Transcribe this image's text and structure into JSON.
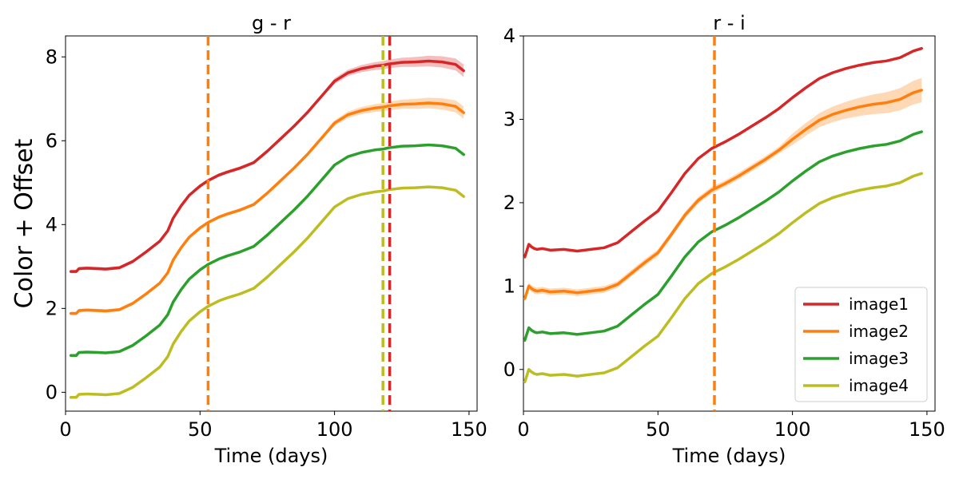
{
  "chart_data": [
    {
      "type": "line",
      "title": "g - r",
      "xlabel": "Time (days)",
      "ylabel": "Color + Offset",
      "xlim": [
        0,
        153
      ],
      "ylim": [
        -0.45,
        8.5
      ],
      "xticks": [
        0,
        50,
        100,
        150
      ],
      "yticks": [
        0,
        2,
        4,
        6,
        8
      ],
      "vlines": [
        {
          "x": 53,
          "color": "#ff7f0e"
        },
        {
          "x": 118,
          "color": "#bcbd22"
        },
        {
          "x": 120.5,
          "color": "#d62728"
        }
      ],
      "band_series": [
        0,
        1
      ],
      "series": [
        {
          "name": "image1",
          "color": "#d62728",
          "offset": 3,
          "x": [
            2,
            4,
            5,
            8,
            12,
            15,
            20,
            25,
            30,
            35,
            38,
            40,
            43,
            46,
            50,
            53,
            57,
            60,
            65,
            70,
            75,
            80,
            85,
            90,
            95,
            100,
            105,
            110,
            115,
            118,
            120,
            125,
            130,
            135,
            140,
            145,
            148
          ],
          "y": [
            -0.12,
            -0.12,
            -0.05,
            -0.04,
            -0.05,
            -0.06,
            -0.03,
            0.12,
            0.35,
            0.6,
            0.85,
            1.15,
            1.45,
            1.7,
            1.92,
            2.05,
            2.18,
            2.25,
            2.35,
            2.48,
            2.75,
            3.05,
            3.35,
            3.68,
            4.05,
            4.42,
            4.62,
            4.72,
            4.78,
            4.8,
            4.83,
            4.87,
            4.88,
            4.9,
            4.88,
            4.82,
            4.67
          ]
        },
        {
          "name": "image2",
          "color": "#ff7f0e",
          "offset": 2,
          "x": [
            2,
            4,
            5,
            8,
            12,
            15,
            20,
            25,
            30,
            35,
            38,
            40,
            43,
            46,
            50,
            53,
            57,
            60,
            65,
            70,
            75,
            80,
            85,
            90,
            95,
            100,
            105,
            110,
            115,
            118,
            120,
            125,
            130,
            135,
            140,
            145,
            148
          ],
          "y": [
            -0.12,
            -0.12,
            -0.05,
            -0.04,
            -0.05,
            -0.06,
            -0.03,
            0.12,
            0.35,
            0.6,
            0.85,
            1.15,
            1.45,
            1.7,
            1.92,
            2.05,
            2.18,
            2.25,
            2.35,
            2.48,
            2.75,
            3.05,
            3.35,
            3.68,
            4.05,
            4.42,
            4.62,
            4.72,
            4.78,
            4.8,
            4.83,
            4.87,
            4.88,
            4.9,
            4.88,
            4.82,
            4.67
          ]
        },
        {
          "name": "image3",
          "color": "#2ca02c",
          "offset": 1,
          "x": [
            2,
            4,
            5,
            8,
            12,
            15,
            20,
            25,
            30,
            35,
            38,
            40,
            43,
            46,
            50,
            53,
            57,
            60,
            65,
            70,
            75,
            80,
            85,
            90,
            95,
            100,
            105,
            110,
            115,
            118,
            120,
            125,
            130,
            135,
            140,
            145,
            148
          ],
          "y": [
            -0.12,
            -0.12,
            -0.05,
            -0.04,
            -0.05,
            -0.06,
            -0.03,
            0.12,
            0.35,
            0.6,
            0.85,
            1.15,
            1.45,
            1.7,
            1.92,
            2.05,
            2.18,
            2.25,
            2.35,
            2.48,
            2.75,
            3.05,
            3.35,
            3.68,
            4.05,
            4.42,
            4.62,
            4.72,
            4.78,
            4.8,
            4.83,
            4.87,
            4.88,
            4.9,
            4.88,
            4.82,
            4.67
          ]
        },
        {
          "name": "image4",
          "color": "#bcbd22",
          "offset": 0,
          "x": [
            2,
            4,
            5,
            8,
            12,
            15,
            20,
            25,
            30,
            35,
            38,
            40,
            43,
            46,
            50,
            53,
            57,
            60,
            65,
            70,
            75,
            80,
            85,
            90,
            95,
            100,
            105,
            110,
            115,
            118,
            120,
            125,
            130,
            135,
            140,
            145,
            148
          ],
          "y": [
            -0.12,
            -0.12,
            -0.05,
            -0.04,
            -0.05,
            -0.06,
            -0.03,
            0.12,
            0.35,
            0.6,
            0.85,
            1.15,
            1.45,
            1.7,
            1.92,
            2.05,
            2.18,
            2.25,
            2.35,
            2.48,
            2.75,
            3.05,
            3.35,
            3.68,
            4.05,
            4.42,
            4.62,
            4.72,
            4.78,
            4.8,
            4.83,
            4.87,
            4.88,
            4.9,
            4.88,
            4.82,
            4.67
          ]
        }
      ]
    },
    {
      "type": "line",
      "title": "r - i",
      "xlabel": "Time (days)",
      "ylabel": "",
      "xlim": [
        0,
        153
      ],
      "ylim": [
        -0.5,
        4.0
      ],
      "xticks": [
        0,
        50,
        100,
        150
      ],
      "yticks": [
        0,
        1,
        2,
        3,
        4
      ],
      "vlines": [
        {
          "x": 71,
          "color": "#ff7f0e"
        }
      ],
      "band_series": [
        1
      ],
      "legend": {
        "position": "lower-right"
      },
      "series": [
        {
          "name": "image1",
          "color": "#d62728",
          "offset": 1.5,
          "x": [
            0.5,
            2,
            3,
            4,
            5,
            7,
            10,
            15,
            20,
            25,
            30,
            35,
            40,
            45,
            50,
            55,
            60,
            65,
            70,
            75,
            80,
            85,
            90,
            95,
            100,
            105,
            110,
            115,
            120,
            125,
            130,
            135,
            140,
            145,
            148
          ],
          "y": [
            -0.15,
            0.0,
            -0.03,
            -0.05,
            -0.06,
            -0.05,
            -0.07,
            -0.06,
            -0.08,
            -0.06,
            -0.04,
            0.02,
            0.15,
            0.28,
            0.4,
            0.62,
            0.85,
            1.03,
            1.15,
            1.23,
            1.32,
            1.42,
            1.52,
            1.63,
            1.76,
            1.88,
            1.99,
            2.06,
            2.11,
            2.15,
            2.18,
            2.2,
            2.24,
            2.32,
            2.35
          ]
        },
        {
          "name": "image2",
          "color": "#ff7f0e",
          "offset": 1,
          "x": [
            0.5,
            2,
            3,
            4,
            5,
            7,
            10,
            15,
            20,
            25,
            30,
            35,
            40,
            45,
            50,
            55,
            60,
            65,
            70,
            75,
            80,
            85,
            90,
            95,
            100,
            105,
            110,
            115,
            120,
            125,
            130,
            135,
            140,
            145,
            148
          ],
          "y": [
            -0.15,
            0.0,
            -0.03,
            -0.05,
            -0.06,
            -0.05,
            -0.07,
            -0.06,
            -0.08,
            -0.06,
            -0.04,
            0.02,
            0.15,
            0.28,
            0.4,
            0.62,
            0.85,
            1.03,
            1.15,
            1.23,
            1.32,
            1.42,
            1.52,
            1.63,
            1.76,
            1.88,
            1.99,
            2.06,
            2.11,
            2.15,
            2.18,
            2.2,
            2.24,
            2.32,
            2.35
          ]
        },
        {
          "name": "image3",
          "color": "#2ca02c",
          "offset": 0.5,
          "x": [
            0.5,
            2,
            3,
            4,
            5,
            7,
            10,
            15,
            20,
            25,
            30,
            35,
            40,
            45,
            50,
            55,
            60,
            65,
            70,
            75,
            80,
            85,
            90,
            95,
            100,
            105,
            110,
            115,
            120,
            125,
            130,
            135,
            140,
            145,
            148
          ],
          "y": [
            -0.15,
            0.0,
            -0.03,
            -0.05,
            -0.06,
            -0.05,
            -0.07,
            -0.06,
            -0.08,
            -0.06,
            -0.04,
            0.02,
            0.15,
            0.28,
            0.4,
            0.62,
            0.85,
            1.03,
            1.15,
            1.23,
            1.32,
            1.42,
            1.52,
            1.63,
            1.76,
            1.88,
            1.99,
            2.06,
            2.11,
            2.15,
            2.18,
            2.2,
            2.24,
            2.32,
            2.35
          ]
        },
        {
          "name": "image4",
          "color": "#bcbd22",
          "offset": 0,
          "x": [
            0.5,
            2,
            3,
            4,
            5,
            7,
            10,
            15,
            20,
            25,
            30,
            35,
            40,
            45,
            50,
            55,
            60,
            65,
            70,
            75,
            80,
            85,
            90,
            95,
            100,
            105,
            110,
            115,
            120,
            125,
            130,
            135,
            140,
            145,
            148
          ],
          "y": [
            -0.15,
            0.0,
            -0.03,
            -0.05,
            -0.06,
            -0.05,
            -0.07,
            -0.06,
            -0.08,
            -0.06,
            -0.04,
            0.02,
            0.15,
            0.28,
            0.4,
            0.62,
            0.85,
            1.03,
            1.15,
            1.23,
            1.32,
            1.42,
            1.52,
            1.63,
            1.76,
            1.88,
            1.99,
            2.06,
            2.11,
            2.15,
            2.18,
            2.2,
            2.24,
            2.32,
            2.35
          ]
        }
      ]
    }
  ]
}
